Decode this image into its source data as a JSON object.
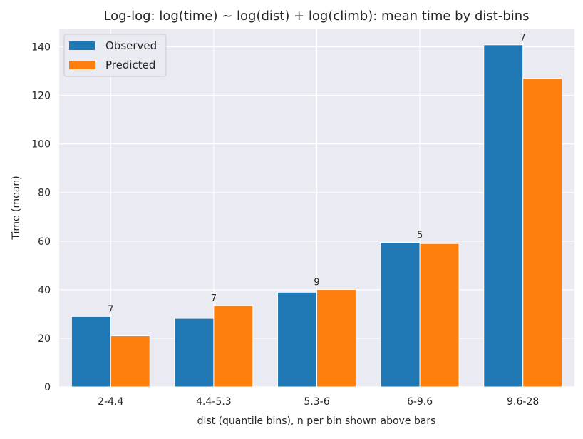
{
  "chart_data": {
    "type": "bar",
    "title": "Log-log: log(time) ~ log(dist) + log(climb): mean time by dist-bins",
    "xlabel": "dist (quantile bins), n per bin shown above bars",
    "ylabel": "Time (mean)",
    "categories": [
      "2-4.4",
      "4.4-5.3",
      "5.3-6",
      "6-9.6",
      "9.6-28"
    ],
    "series": [
      {
        "name": "Observed",
        "color": "#1f77b4",
        "values": [
          29.0,
          28.2,
          39.0,
          59.5,
          140.8
        ]
      },
      {
        "name": "Predicted",
        "color": "#ff7f0e",
        "values": [
          21.0,
          33.5,
          40.1,
          59.0,
          127.0
        ]
      }
    ],
    "bin_counts": [
      "7",
      "7",
      "9",
      "5",
      "7"
    ],
    "ylim": [
      0,
      147.5
    ],
    "yticks": [
      0,
      20,
      40,
      60,
      80,
      100,
      120,
      140
    ],
    "grid": true,
    "legend_position": "top-left",
    "background": "#eaeaf2"
  }
}
